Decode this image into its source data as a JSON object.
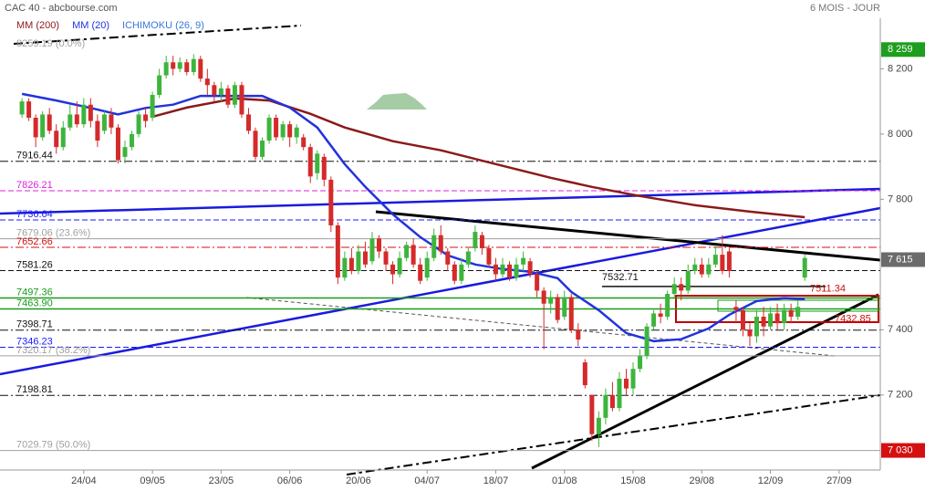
{
  "chart_data": {
    "type": "candlestick",
    "title": "CAC 40 - abcbourse.com",
    "subtitle": "6 MOIS - JOUR",
    "up_color": "#3db53d",
    "down_color": "#d42a2a",
    "xlim": [
      -2.2,
      126
    ],
    "xticks": [
      {
        "value": 10,
        "label": "24/04"
      },
      {
        "value": 20,
        "label": "09/05"
      },
      {
        "value": 30,
        "label": "23/05"
      },
      {
        "value": 40,
        "label": "06/06"
      },
      {
        "value": 50,
        "label": "20/06"
      },
      {
        "value": 60,
        "label": "04/07"
      },
      {
        "value": 70,
        "label": "18/07"
      },
      {
        "value": 80,
        "label": "01/08"
      },
      {
        "value": 90,
        "label": "15/08"
      },
      {
        "value": 100,
        "label": "29/08"
      },
      {
        "value": 110,
        "label": "12/09"
      },
      {
        "value": 120,
        "label": "27/09"
      }
    ],
    "ylim": [
      6970,
      8355
    ],
    "yticks": [
      {
        "value": 7200,
        "label": "7 200"
      },
      {
        "value": 7400,
        "label": "7 400"
      },
      {
        "value": 7800,
        "label": "7 800"
      },
      {
        "value": 8000,
        "label": "8 000"
      },
      {
        "value": 8200,
        "label": "8 200"
      }
    ],
    "x": [
      1,
      2,
      3,
      4,
      5,
      6,
      7,
      8,
      9,
      10,
      11,
      12,
      13,
      14,
      15,
      16,
      17,
      18,
      19,
      20,
      21,
      22,
      23,
      24,
      25,
      26,
      27,
      28,
      29,
      30,
      31,
      32,
      33,
      34,
      35,
      36,
      37,
      38,
      39,
      40,
      41,
      42,
      43,
      44,
      45,
      46,
      47,
      48,
      49,
      50,
      51,
      52,
      53,
      54,
      55,
      56,
      57,
      58,
      59,
      60,
      61,
      62,
      63,
      64,
      65,
      66,
      67,
      68,
      69,
      70,
      71,
      72,
      73,
      74,
      75,
      76,
      77,
      78,
      79,
      80,
      81,
      82,
      83,
      84,
      85,
      86,
      87,
      88,
      89,
      90,
      91,
      92,
      93,
      94,
      95,
      96,
      97,
      98,
      99,
      100,
      101,
      102,
      103,
      104,
      105,
      106,
      107,
      108,
      109,
      110,
      111,
      112,
      113,
      114,
      115
    ],
    "ohlc": [
      [
        8060,
        8110,
        8050,
        8100
      ],
      [
        8100,
        8110,
        8040,
        8050
      ],
      [
        8050,
        8060,
        7960,
        7990
      ],
      [
        7990,
        8070,
        7980,
        8060
      ],
      [
        8060,
        8080,
        8000,
        8010
      ],
      [
        8010,
        8030,
        7940,
        7960
      ],
      [
        7960,
        8040,
        7950,
        8020
      ],
      [
        8020,
        8090,
        8010,
        8060
      ],
      [
        8060,
        8100,
        8020,
        8030
      ],
      [
        8030,
        8110,
        8020,
        8090
      ],
      [
        8090,
        8110,
        8020,
        8040
      ],
      [
        8040,
        8060,
        7960,
        7980
      ],
      [
        8010,
        8070,
        8000,
        8060
      ],
      [
        8060,
        8080,
        8000,
        8020
      ],
      [
        8020,
        8030,
        7910,
        7920
      ],
      [
        7930,
        7980,
        7910,
        7960
      ],
      [
        7960,
        8010,
        7950,
        8000
      ],
      [
        8000,
        8070,
        7990,
        8060
      ],
      [
        8060,
        8080,
        8020,
        8040
      ],
      [
        8050,
        8130,
        8040,
        8120
      ],
      [
        8120,
        8200,
        8110,
        8180
      ],
      [
        8180,
        8240,
        8170,
        8220
      ],
      [
        8220,
        8240,
        8180,
        8200
      ],
      [
        8200,
        8235,
        8190,
        8220
      ],
      [
        8220,
        8230,
        8180,
        8190
      ],
      [
        8190,
        8245,
        8180,
        8230
      ],
      [
        8230,
        8240,
        8160,
        8170
      ],
      [
        8170,
        8200,
        8120,
        8150
      ],
      [
        8150,
        8160,
        8100,
        8120
      ],
      [
        8120,
        8160,
        8100,
        8140
      ],
      [
        8140,
        8150,
        8080,
        8090
      ],
      [
        8090,
        8160,
        8080,
        8150
      ],
      [
        8150,
        8160,
        8050,
        8060
      ],
      [
        8060,
        8080,
        8000,
        8010
      ],
      [
        8010,
        8020,
        7920,
        7930
      ],
      [
        7930,
        7990,
        7920,
        7980
      ],
      [
        7980,
        8060,
        7970,
        8050
      ],
      [
        8050,
        8060,
        7980,
        7990
      ],
      [
        7990,
        8040,
        7980,
        8030
      ],
      [
        8030,
        8040,
        7960,
        7990
      ],
      [
        7990,
        8030,
        7970,
        8020
      ],
      [
        7990,
        8000,
        7950,
        7960
      ],
      [
        7960,
        7970,
        7850,
        7870
      ],
      [
        7880,
        7950,
        7860,
        7940
      ],
      [
        7930,
        7940,
        7840,
        7860
      ],
      [
        7860,
        7870,
        7700,
        7720
      ],
      [
        7720,
        7730,
        7540,
        7560
      ],
      [
        7560,
        7640,
        7550,
        7620
      ],
      [
        7620,
        7650,
        7570,
        7580
      ],
      [
        7580,
        7660,
        7570,
        7640
      ],
      [
        7640,
        7670,
        7590,
        7600
      ],
      [
        7610,
        7700,
        7600,
        7680
      ],
      [
        7680,
        7690,
        7620,
        7640
      ],
      [
        7640,
        7650,
        7580,
        7600
      ],
      [
        7600,
        7610,
        7540,
        7570
      ],
      [
        7570,
        7640,
        7560,
        7620
      ],
      [
        7620,
        7670,
        7610,
        7660
      ],
      [
        7660,
        7680,
        7590,
        7600
      ],
      [
        7600,
        7620,
        7540,
        7550
      ],
      [
        7560,
        7640,
        7550,
        7620
      ],
      [
        7620,
        7710,
        7610,
        7690
      ],
      [
        7690,
        7720,
        7630,
        7640
      ],
      [
        7640,
        7650,
        7580,
        7600
      ],
      [
        7600,
        7610,
        7540,
        7550
      ],
      [
        7550,
        7620,
        7540,
        7600
      ],
      [
        7600,
        7650,
        7590,
        7640
      ],
      [
        7650,
        7720,
        7640,
        7700
      ],
      [
        7690,
        7700,
        7630,
        7650
      ],
      [
        7650,
        7660,
        7590,
        7600
      ],
      [
        7600,
        7620,
        7550,
        7570
      ],
      [
        7570,
        7620,
        7560,
        7600
      ],
      [
        7600,
        7610,
        7550,
        7560
      ],
      [
        7560,
        7620,
        7550,
        7600
      ],
      [
        7600,
        7640,
        7580,
        7620
      ],
      [
        7610,
        7620,
        7560,
        7570
      ],
      [
        7570,
        7580,
        7500,
        7520
      ],
      [
        7520,
        7530,
        7340,
        7480
      ],
      [
        7480,
        7520,
        7450,
        7500
      ],
      [
        7500,
        7510,
        7420,
        7430
      ],
      [
        7440,
        7520,
        7430,
        7500
      ],
      [
        7500,
        7510,
        7390,
        7400
      ],
      [
        7400,
        7420,
        7350,
        7370
      ],
      [
        7300,
        7310,
        7220,
        7230
      ],
      [
        7200,
        7200,
        7060,
        7080
      ],
      [
        7080,
        7150,
        7040,
        7130
      ],
      [
        7130,
        7220,
        7110,
        7200
      ],
      [
        7200,
        7240,
        7150,
        7160
      ],
      [
        7160,
        7270,
        7150,
        7250
      ],
      [
        7250,
        7280,
        7200,
        7220
      ],
      [
        7220,
        7300,
        7200,
        7280
      ],
      [
        7280,
        7340,
        7270,
        7320
      ],
      [
        7320,
        7420,
        7310,
        7410
      ],
      [
        7410,
        7460,
        7400,
        7450
      ],
      [
        7450,
        7480,
        7420,
        7440
      ],
      [
        7440,
        7520,
        7430,
        7510
      ],
      [
        7510,
        7560,
        7500,
        7540
      ],
      [
        7540,
        7560,
        7490,
        7520
      ],
      [
        7520,
        7600,
        7510,
        7580
      ],
      [
        7580,
        7620,
        7570,
        7600
      ],
      [
        7600,
        7620,
        7560,
        7570
      ],
      [
        7570,
        7620,
        7560,
        7600
      ],
      [
        7600,
        7660,
        7590,
        7630
      ],
      [
        7630,
        7690,
        7570,
        7580
      ],
      [
        7640,
        7650,
        7560,
        7580
      ],
      [
        7470,
        7490,
        7420,
        7460
      ],
      [
        7460,
        7470,
        7380,
        7400
      ],
      [
        7400,
        7420,
        7350,
        7380
      ],
      [
        7380,
        7460,
        7360,
        7440
      ],
      [
        7440,
        7470,
        7380,
        7410
      ],
      [
        7410,
        7470,
        7400,
        7450
      ],
      [
        7450,
        7480,
        7400,
        7420
      ],
      [
        7420,
        7480,
        7400,
        7460
      ],
      [
        7460,
        7480,
        7420,
        7440
      ],
      [
        7440,
        7490,
        7430,
        7470
      ],
      [
        7560,
        7630,
        7550,
        7620
      ]
    ],
    "series": [
      {
        "name": "MM (200)",
        "color": "#8b1a1a",
        "x": [
          20,
          25,
          32,
          37,
          43,
          48,
          55,
          62,
          70,
          78,
          84,
          91,
          99,
          107,
          115
        ],
        "values": [
          8053,
          8081,
          8109,
          8103,
          8062,
          8020,
          7978,
          7950,
          7908,
          7866,
          7838,
          7810,
          7782,
          7762,
          7745
        ]
      },
      {
        "name": "MM (20)",
        "color": "#2233dd",
        "x": [
          1,
          6,
          11,
          15,
          19,
          23,
          27,
          31,
          36,
          40,
          44,
          48,
          51,
          55,
          59,
          63,
          67,
          71,
          75,
          79,
          81,
          85,
          89,
          93,
          97,
          101,
          104,
          108,
          112,
          115
        ],
        "values": [
          8123,
          8103,
          8080,
          8060,
          8080,
          8090,
          8117,
          8117,
          8117,
          8081,
          8020,
          7908,
          7838,
          7754,
          7684,
          7628,
          7600,
          7586,
          7578,
          7558,
          7516,
          7460,
          7390,
          7365,
          7371,
          7404,
          7446,
          7488,
          7497,
          7494
        ]
      },
      {
        "name": "ICHIMOKU (26, 9)",
        "color": "#3a78d8"
      }
    ],
    "levels": [
      {
        "value": 8259.19,
        "label": "8259.19 (0.0%)",
        "color": "#a0a0a0",
        "style": "none"
      },
      {
        "value": 7916.44,
        "label": "7916.44",
        "color": "#111111",
        "style": "dashdot"
      },
      {
        "value": 7826.21,
        "label": "7826.21",
        "color": "#e020e0",
        "style": "dashed"
      },
      {
        "value": 7736.64,
        "label": "7736.64",
        "color": "#1a1aff",
        "style": "dashed"
      },
      {
        "value": 7679.06,
        "label": "7679.06 (23.6%)",
        "color": "#a0a0a0",
        "style": "solid"
      },
      {
        "value": 7652.66,
        "label": "7652.66",
        "color": "#d01010",
        "style": "dashdot"
      },
      {
        "value": 7581.26,
        "label": "7581.26",
        "color": "#111111",
        "style": "dashed"
      },
      {
        "value": 7497.36,
        "label": "7497.36",
        "color": "#1a9a1a",
        "style": "solid"
      },
      {
        "value": 7463.9,
        "label": "7463.90",
        "color": "#1a9a1a",
        "style": "solid"
      },
      {
        "value": 7398.71,
        "label": "7398.71",
        "color": "#111111",
        "style": "dashdot"
      },
      {
        "value": 7346.23,
        "label": "7346.23",
        "color": "#1a1aff",
        "style": "dashed"
      },
      {
        "value": 7320.17,
        "label": "7320.17 (38.2%)",
        "color": "#a0a0a0",
        "style": "solid"
      },
      {
        "value": 7198.81,
        "label": "7198.81",
        "color": "#111111",
        "style": "dashdot"
      },
      {
        "value": 7029.79,
        "label": "7029.79 (50.0%)",
        "color": "#a0a0a0",
        "style": "solid"
      },
      {
        "value": 7532.71,
        "label": "7532.71",
        "color": "#111111",
        "style": "solid"
      },
      {
        "value": 7511.34,
        "label": "7511.34",
        "color": "#d01010",
        "style": "none"
      },
      {
        "value": 7432.85,
        "label": "7432.85",
        "color": "#d01010",
        "style": "none"
      }
    ],
    "price_markers": [
      {
        "value": 8259,
        "label": "8 259",
        "color": "#1e9e1e"
      },
      {
        "value": 7615,
        "label": "7 615",
        "color": "#6b6b6b"
      },
      {
        "value": 7030,
        "label": "7 030",
        "color": "#d41010"
      }
    ]
  }
}
